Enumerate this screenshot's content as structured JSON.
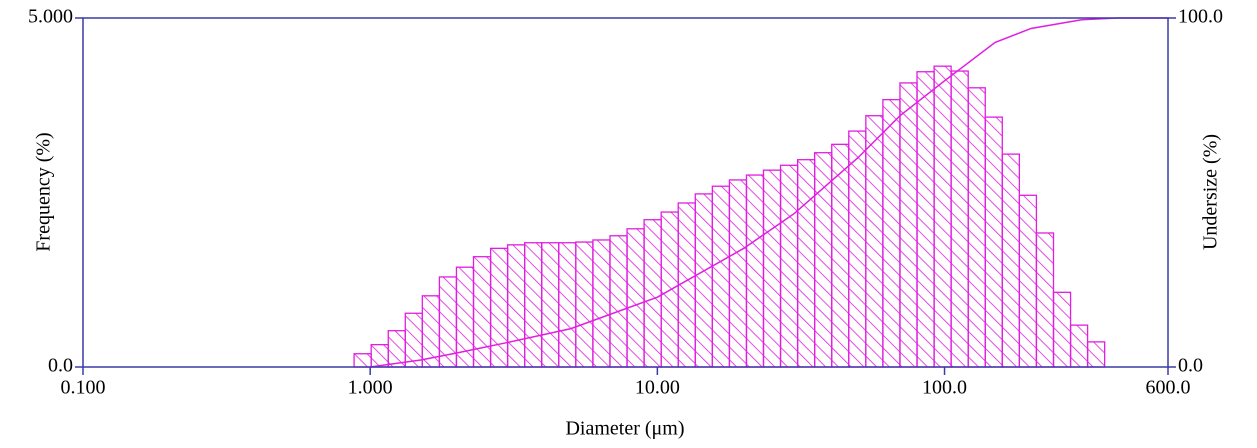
{
  "chart_data": {
    "type": "histogram",
    "xlabel": "Diameter (μm)",
    "ylabel": "Frequency (%)",
    "y2label": "Undersize (%)",
    "log_x": true,
    "xlim": [
      0.1,
      600
    ],
    "xticks": [
      {
        "value": 0.1,
        "label": "0.100"
      },
      {
        "value": 1,
        "label": "1.000"
      },
      {
        "value": 10,
        "label": "10.00"
      },
      {
        "value": 100,
        "label": "100.0"
      },
      {
        "value": 600,
        "label": "600.0"
      }
    ],
    "ylim": [
      0,
      5
    ],
    "yticks": [
      {
        "value": 0,
        "label": "0.0"
      },
      {
        "value": 5,
        "label": "5.000"
      }
    ],
    "y2lim": [
      0,
      100
    ],
    "y2ticks": [
      {
        "value": 0,
        "label": "0.0"
      },
      {
        "value": 100,
        "label": "100.0"
      }
    ],
    "color": "#e01ee0",
    "axis_color": "#3a3aa8",
    "bins": [
      0.879,
      1.008,
      1.156,
      1.325,
      1.519,
      1.742,
      1.997,
      2.29,
      2.626,
      3.01,
      3.451,
      3.957,
      4.537,
      5.202,
      5.965,
      6.839,
      7.842,
      8.99,
      10.31,
      11.82,
      13.55,
      15.54,
      17.82,
      20.43,
      23.42,
      26.85,
      30.79,
      35.3,
      40.48,
      46.41,
      53.21,
      61.01,
      69.95,
      80.21,
      91.97,
      105.4,
      120.9,
      138.6,
      158.9,
      182.2,
      208.9,
      239.6,
      274.7,
      314.9,
      361.1
    ],
    "values": [
      0.19,
      0.32,
      0.52,
      0.77,
      1.02,
      1.29,
      1.43,
      1.58,
      1.7,
      1.75,
      1.78,
      1.78,
      1.78,
      1.79,
      1.82,
      1.88,
      1.98,
      2.11,
      2.22,
      2.35,
      2.48,
      2.59,
      2.68,
      2.75,
      2.82,
      2.89,
      2.97,
      3.07,
      3.19,
      3.38,
      3.6,
      3.83,
      4.07,
      4.23,
      4.31,
      4.24,
      4.0,
      3.58,
      3.05,
      2.46,
      1.92,
      1.07,
      0.6,
      0.36
    ],
    "cumulative": {
      "axis": "y2",
      "color": "#e01ee0",
      "x": [
        1,
        1.5,
        2,
        3,
        5,
        10,
        20,
        30,
        50,
        70,
        100,
        150,
        200,
        300,
        400,
        600
      ],
      "values": [
        0,
        2,
        4,
        7,
        11,
        20,
        34,
        44,
        60,
        72,
        82,
        93,
        97,
        99.5,
        100,
        100
      ]
    }
  }
}
